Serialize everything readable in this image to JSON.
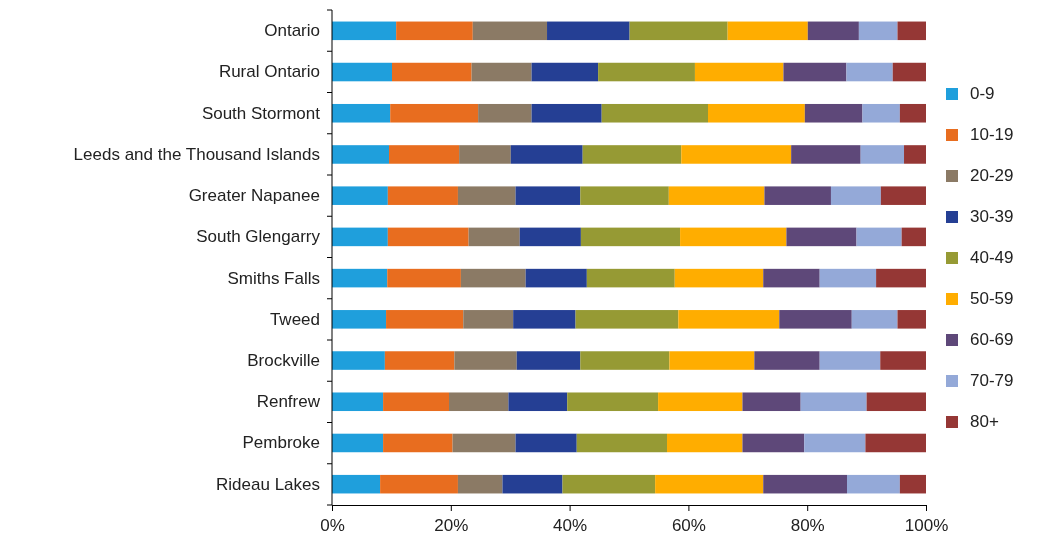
{
  "chart_data": {
    "type": "bar",
    "orientation": "horizontal",
    "stacked": true,
    "grid": false,
    "legend": "right",
    "categories": [
      "Ontario",
      "Rural Ontario",
      "South Stormont",
      "Leeds and the Thousand Islands",
      "Greater Napanee",
      "South Glengarry",
      "Smiths Falls",
      "Tweed",
      "Brockville",
      "Renfrew",
      "Pembroke",
      "Rideau Lakes"
    ],
    "xlim": [
      0,
      100
    ],
    "xticks": [
      {
        "value": 0,
        "label": "0%"
      },
      {
        "value": 20,
        "label": "20%"
      },
      {
        "value": 40,
        "label": "40%"
      },
      {
        "value": 60,
        "label": "60%"
      },
      {
        "value": 80,
        "label": "80%"
      },
      {
        "value": 100,
        "label": "100%"
      }
    ],
    "series": [
      {
        "name": "0-9",
        "color": "#1f9fdc",
        "values": [
          10.8,
          10.1,
          9.8,
          9.6,
          9.4,
          9.4,
          9.3,
          9.1,
          8.9,
          8.6,
          8.6,
          8.1
        ]
      },
      {
        "name": "10-19",
        "color": "#e86d1f",
        "values": [
          12.9,
          13.4,
          14.8,
          11.8,
          11.8,
          13.6,
          12.4,
          13.0,
          11.7,
          11.1,
          11.7,
          13.1
        ]
      },
      {
        "name": "20-29",
        "color": "#8b7a65",
        "values": [
          12.5,
          10.1,
          9.0,
          8.7,
          9.7,
          8.6,
          10.9,
          8.4,
          10.5,
          10.0,
          10.6,
          7.5
        ]
      },
      {
        "name": "30-39",
        "color": "#253f94",
        "values": [
          13.9,
          11.2,
          11.8,
          12.1,
          10.9,
          10.3,
          10.3,
          10.5,
          10.7,
          9.9,
          10.3,
          10.1
        ]
      },
      {
        "name": "40-49",
        "color": "#969a34",
        "values": [
          16.5,
          16.3,
          17.9,
          16.6,
          14.9,
          16.7,
          14.8,
          17.3,
          15.0,
          15.3,
          15.2,
          15.6
        ]
      },
      {
        "name": "50-59",
        "color": "#ffad00",
        "values": [
          13.5,
          14.9,
          16.3,
          18.5,
          16.1,
          17.9,
          14.9,
          17.0,
          14.3,
          14.2,
          12.7,
          18.2
        ]
      },
      {
        "name": "60-69",
        "color": "#5e4879",
        "values": [
          8.6,
          10.6,
          9.7,
          11.7,
          11.2,
          11.8,
          9.5,
          12.2,
          11.0,
          9.8,
          10.4,
          14.1
        ]
      },
      {
        "name": "70-79",
        "color": "#94a9d8",
        "values": [
          6.5,
          7.8,
          6.3,
          7.3,
          8.4,
          7.6,
          9.5,
          7.7,
          10.2,
          11.1,
          10.3,
          8.9
        ]
      },
      {
        "name": "80+",
        "color": "#953735",
        "values": [
          4.8,
          5.6,
          4.4,
          3.7,
          7.6,
          4.1,
          8.4,
          4.8,
          7.7,
          10.0,
          10.2,
          4.4
        ]
      }
    ]
  }
}
